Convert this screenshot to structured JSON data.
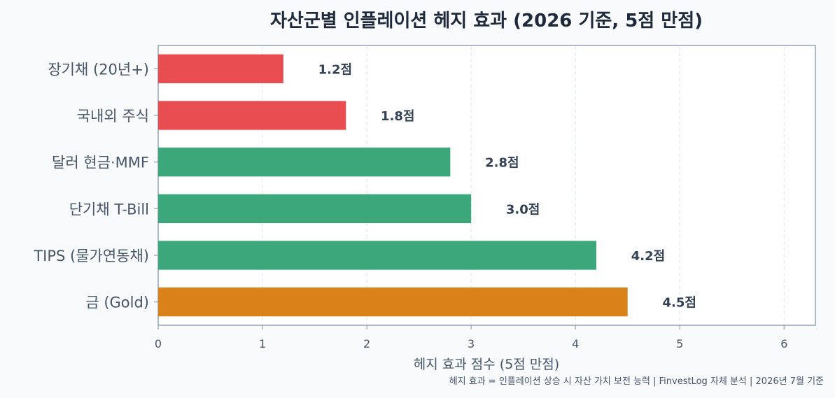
{
  "chart_data": {
    "type": "bar",
    "orientation": "horizontal",
    "title": "자산군별 인플레이션 헤지 효과 (2026 기준, 5점 만점)",
    "categories": [
      "장기채 (20년+)",
      "국내외 주식",
      "달러 현금·MMF",
      "단기채 T-Bill",
      "TIPS (물가연동채)",
      "금 (Gold)"
    ],
    "values": [
      1.2,
      1.8,
      2.8,
      3.0,
      4.2,
      4.5
    ],
    "data_labels": [
      "1.2점",
      "1.8점",
      "2.8점",
      "3.0점",
      "4.2점",
      "4.5점"
    ],
    "bar_colors": [
      "#e84e51",
      "#e84e51",
      "#3da77c",
      "#3da77c",
      "#3da77c",
      "#d9821a"
    ],
    "xlabel": "헤지 효과 점수 (5점 만점)",
    "ylabel": "",
    "xlim": [
      0,
      6.3
    ],
    "xticks": [
      0,
      1,
      2,
      3,
      4,
      5,
      6
    ],
    "grid": "vertical-dashed",
    "legend": "none"
  },
  "footnote": "헤지 효과 = 인플레이션 상승 시 자산 가치 보전 능력 | FinvestLog 자체 분석 | 2026년 7월 기준",
  "colors": {
    "background": "#f8fafc",
    "plot_background": "#ffffff",
    "axis_frame": "#94a3b8",
    "title": "#1e293b",
    "text": "#475569"
  }
}
